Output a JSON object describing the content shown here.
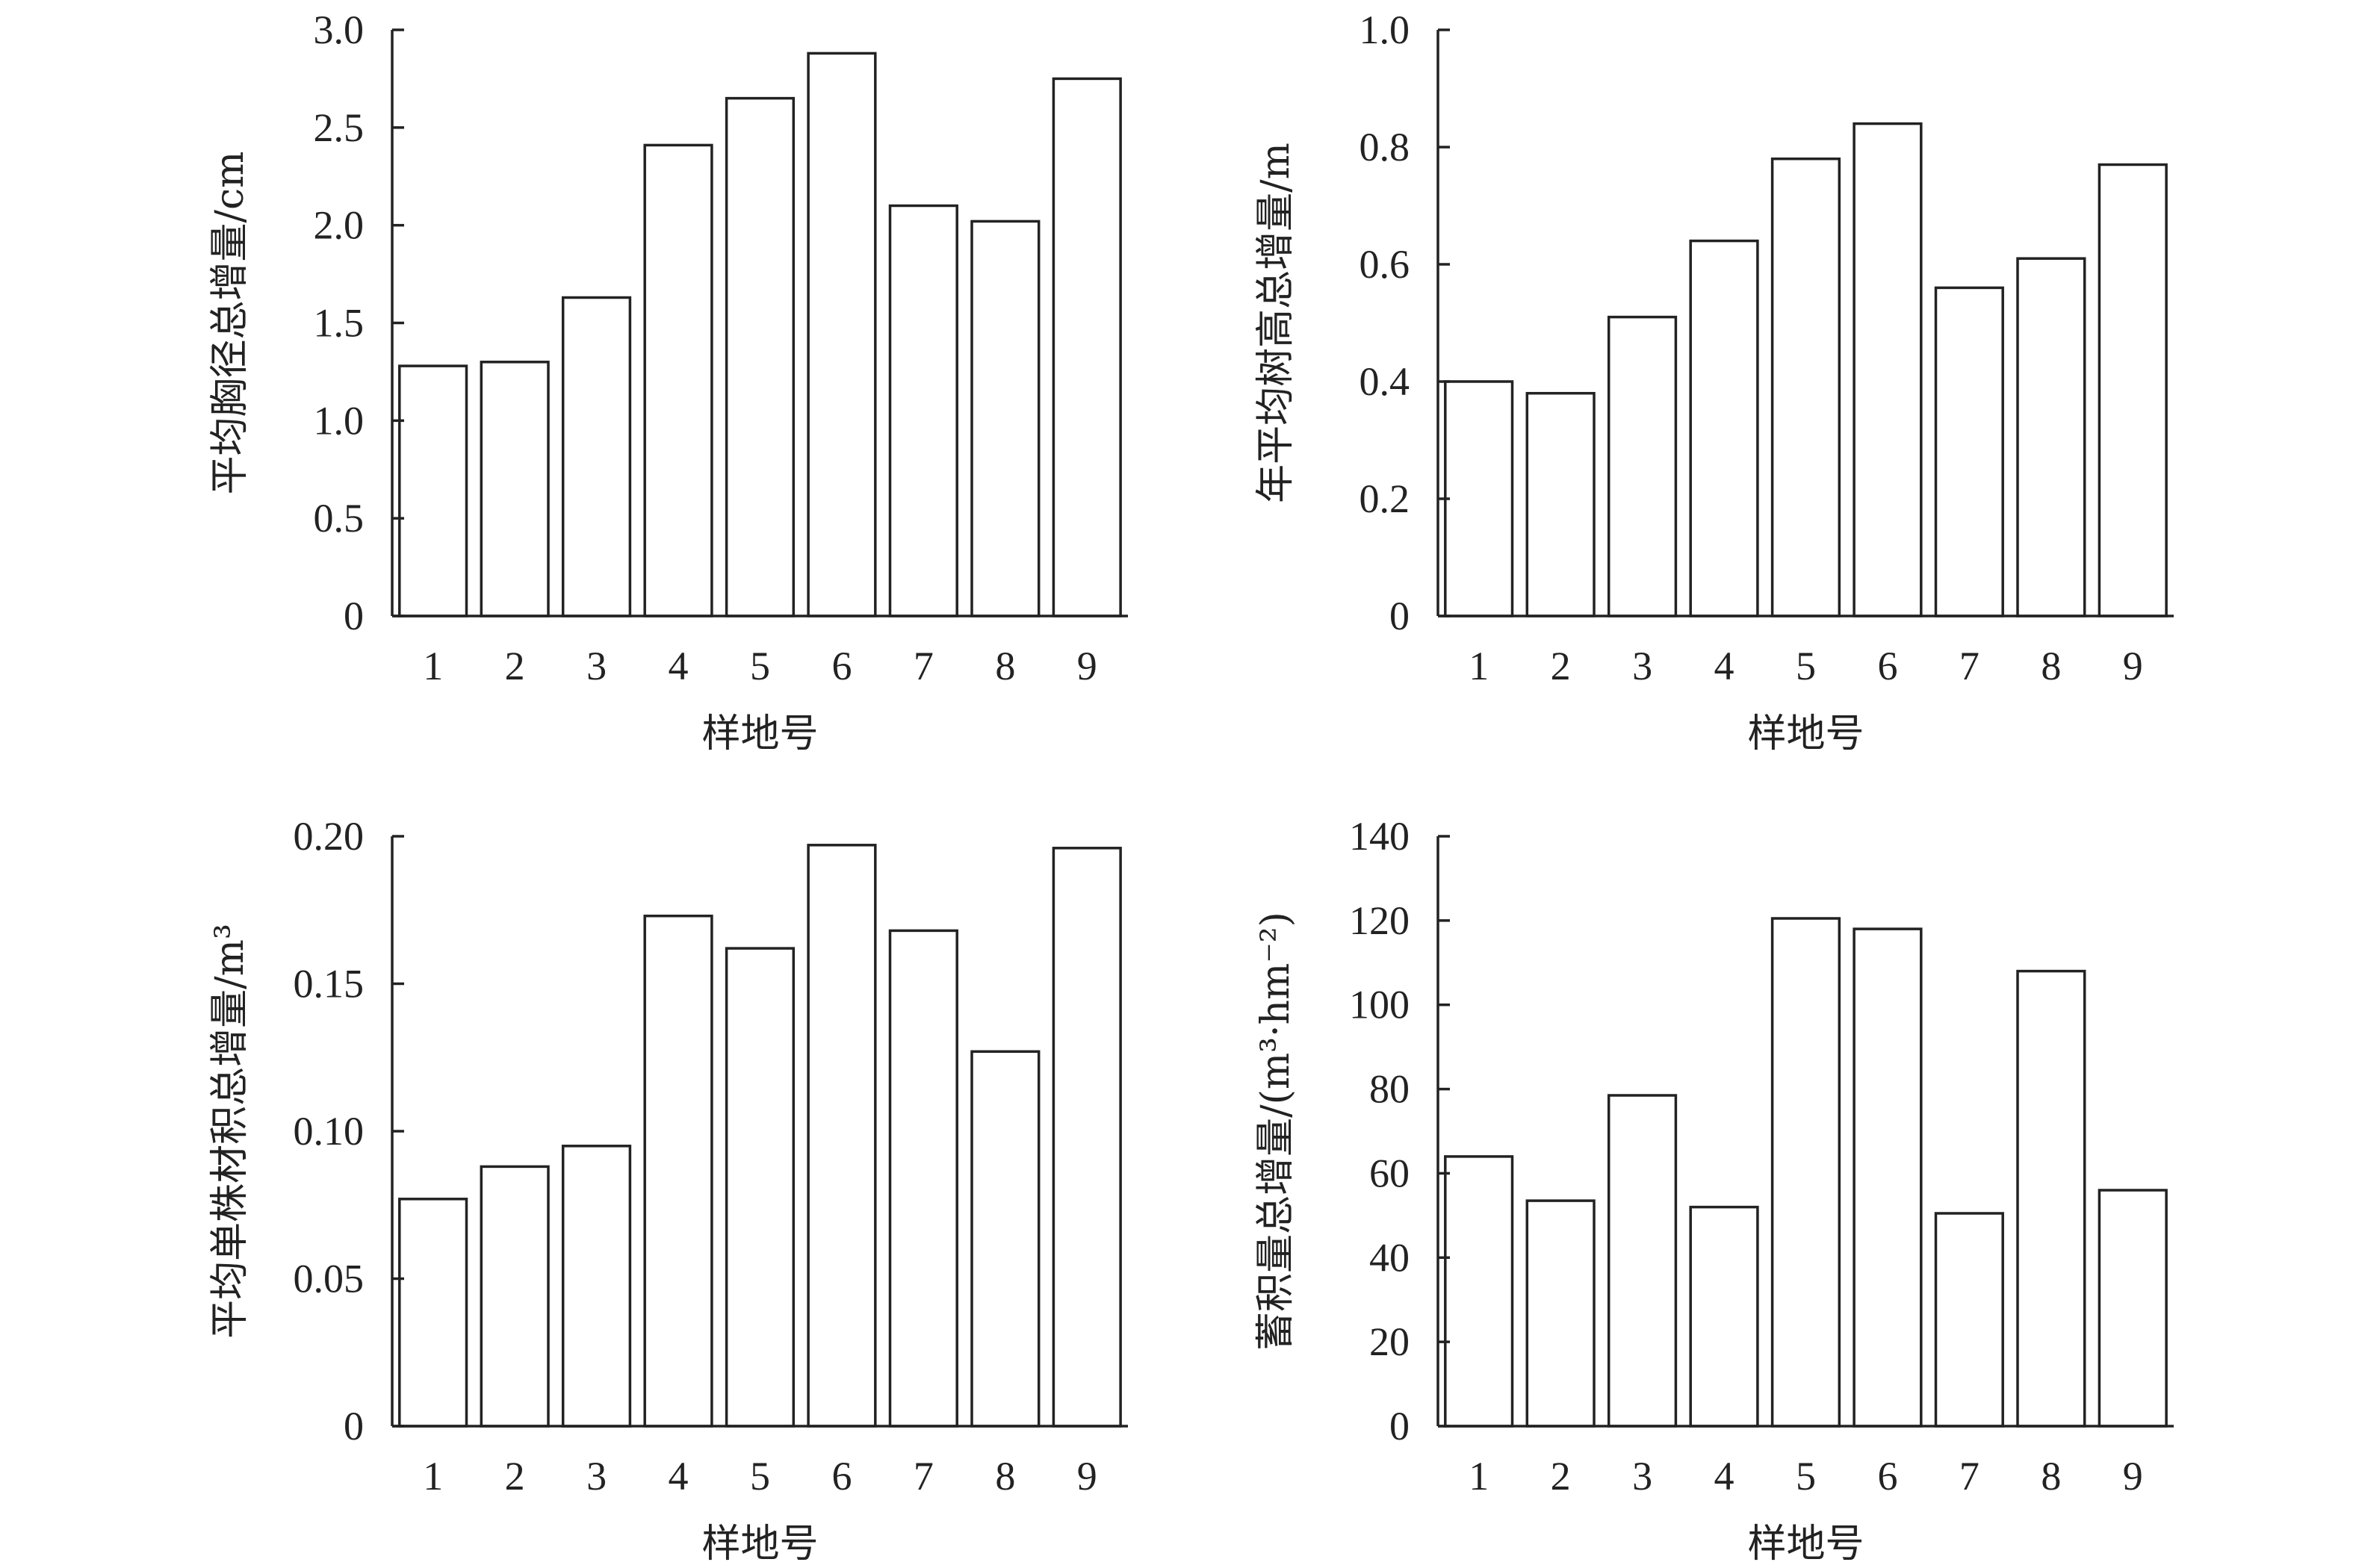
{
  "chart_data": [
    {
      "type": "bar",
      "categories": [
        "1",
        "2",
        "3",
        "4",
        "5",
        "6",
        "7",
        "8",
        "9"
      ],
      "values": [
        1.28,
        1.3,
        1.63,
        2.41,
        2.65,
        2.88,
        2.1,
        2.02,
        2.75
      ],
      "xlabel": "样地号",
      "ylabel": "平均胸径总增量/cm",
      "ylim": [
        0,
        3.0
      ],
      "yticks": [
        "0",
        "0.5",
        "1.0",
        "1.5",
        "2.0",
        "2.5",
        "3.0"
      ],
      "grid": false
    },
    {
      "type": "bar",
      "categories": [
        "1",
        "2",
        "3",
        "4",
        "5",
        "6",
        "7",
        "8",
        "9"
      ],
      "values": [
        0.4,
        0.38,
        0.51,
        0.64,
        0.78,
        0.84,
        0.56,
        0.61,
        0.77
      ],
      "xlabel": "样地号",
      "ylabel": "年平均树高总增量/m",
      "ylim": [
        0,
        1.0
      ],
      "yticks": [
        "0",
        "0.2",
        "0.4",
        "0.6",
        "0.8",
        "1.0"
      ],
      "grid": false
    },
    {
      "type": "bar",
      "categories": [
        "1",
        "2",
        "3",
        "4",
        "5",
        "6",
        "7",
        "8",
        "9"
      ],
      "values": [
        0.077,
        0.088,
        0.095,
        0.173,
        0.162,
        0.197,
        0.168,
        0.127,
        0.196
      ],
      "xlabel": "样地号",
      "ylabel": "平均单株材积总增量/m³",
      "ylim": [
        0,
        0.2
      ],
      "yticks": [
        "0",
        "0.05",
        "0.10",
        "0.15",
        "0.20"
      ],
      "grid": false
    },
    {
      "type": "bar",
      "categories": [
        "1",
        "2",
        "3",
        "4",
        "5",
        "6",
        "7",
        "8",
        "9"
      ],
      "values": [
        64,
        53.5,
        78.5,
        52,
        120.5,
        118,
        50.5,
        108,
        56
      ],
      "xlabel": "样地号",
      "ylabel": "蓄积量总增量/(m³·hm⁻²)",
      "ylim": [
        0,
        140
      ],
      "yticks": [
        "0",
        "20",
        "40",
        "60",
        "80",
        "100",
        "120",
        "140"
      ],
      "grid": false
    }
  ]
}
